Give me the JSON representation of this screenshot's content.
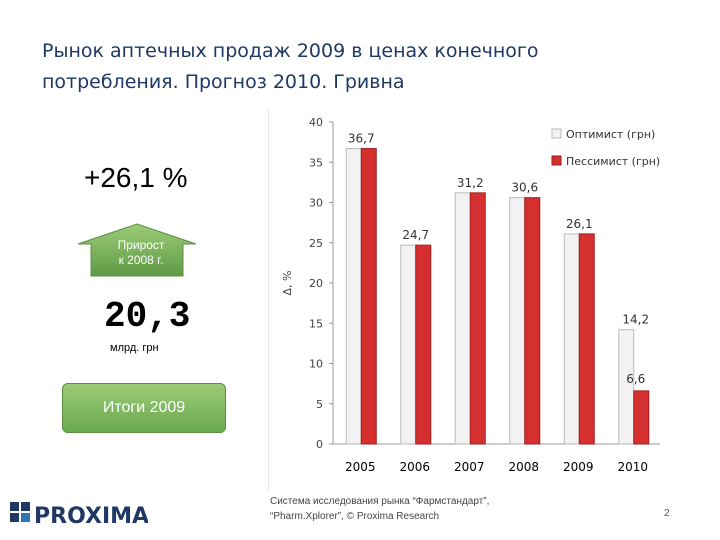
{
  "slide": {
    "title_line1": "Рынок аптечных продаж 2009 в ценах конечного",
    "title_line2": "потребления. Прогноз 2010. Гривна",
    "growth_pct": "+26,1 %",
    "arrow_line1": "Прирост",
    "arrow_line2": "к 2008 г.",
    "market_value": "20,3",
    "market_unit": "млрд. грн",
    "totals_label": "Итоги 2009",
    "logo_text": "PROXIMA",
    "source_line1": "Система исследования рынка “Фармстандарт”,",
    "source_line2": "“Pharm.Xplorer”, © Proxima Research",
    "page_number": "2"
  },
  "colors": {
    "title": "#1f3864",
    "optimist": "#f2f2f2",
    "pessimist": "#d62f2f",
    "badge": "#6aa84f",
    "logo": "#1f3864"
  },
  "chart_data": {
    "type": "bar",
    "categories": [
      "2005",
      "2006",
      "2007",
      "2008",
      "2009",
      "2010"
    ],
    "series": [
      {
        "name": "Оптимист (грн)",
        "values": [
          36.7,
          24.7,
          31.2,
          30.6,
          26.1,
          14.2
        ]
      },
      {
        "name": "Пессимист (грн)",
        "values": [
          36.7,
          24.7,
          31.2,
          30.6,
          26.1,
          6.6
        ]
      }
    ],
    "data_labels": [
      "36,7",
      "24,7",
      "31,2",
      "30,6",
      "26,1",
      "14,2",
      "6,6"
    ],
    "yticks": [
      "0",
      "5",
      "10",
      "15",
      "20",
      "25",
      "30",
      "35",
      "40"
    ],
    "ylabel": "Δ, %",
    "ylim": [
      0,
      40
    ],
    "legend_position": "top-right",
    "grid": false
  }
}
